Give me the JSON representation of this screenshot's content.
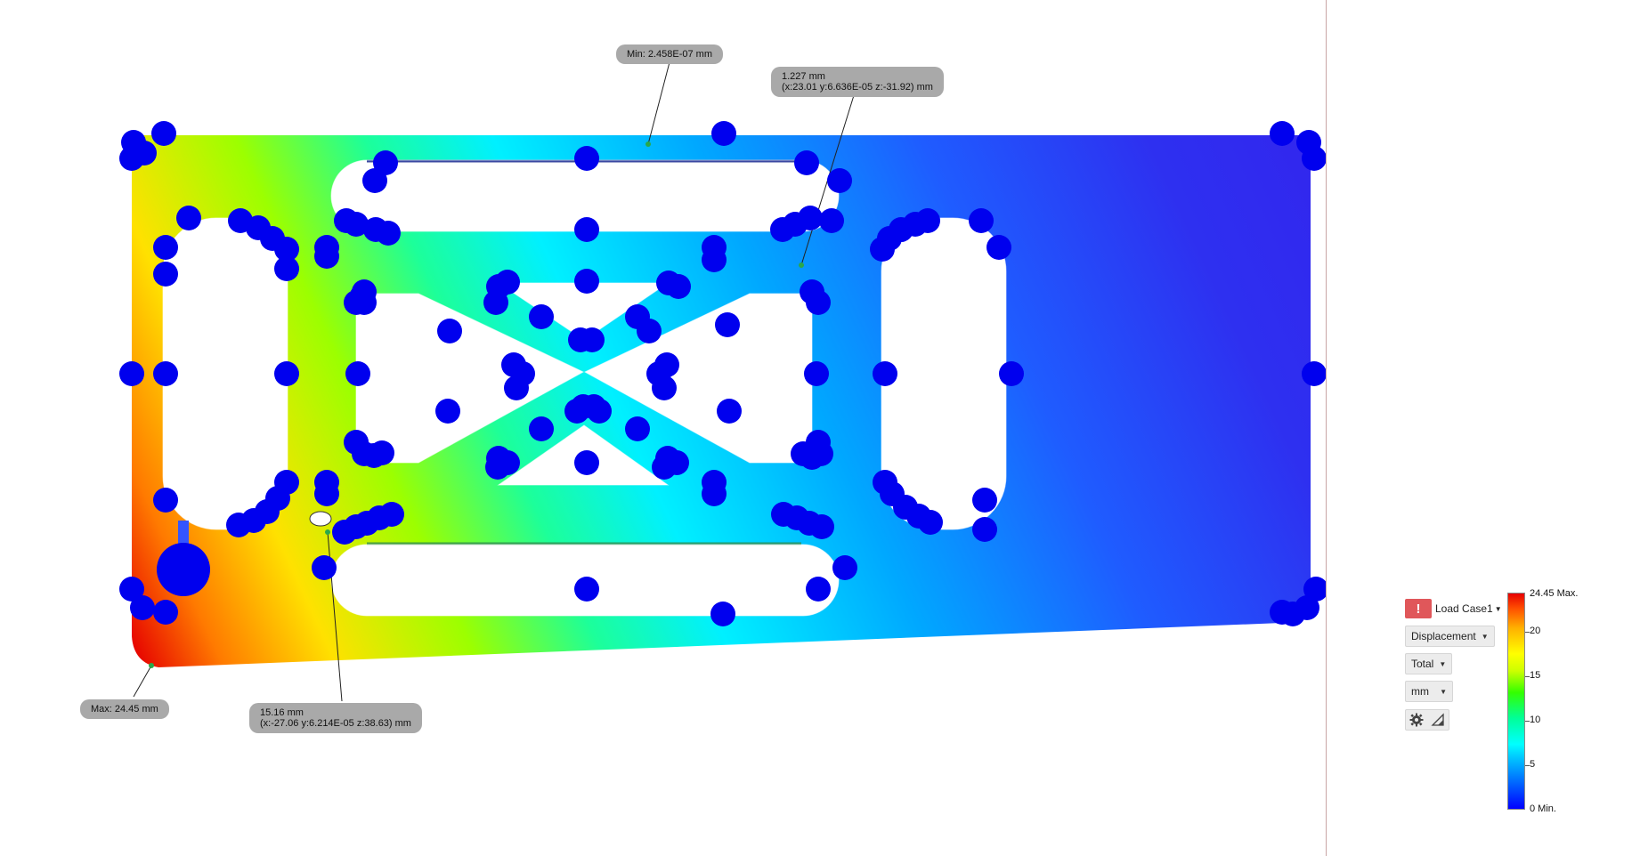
{
  "callouts": {
    "min": {
      "line1": "Min: 2.458E-07 mm"
    },
    "probe1": {
      "line1": "1.227 mm",
      "line2": "(x:23.01 y:6.636E-05 z:-31.92) mm"
    },
    "max": {
      "line1": "Max: 24.45 mm"
    },
    "probe2": {
      "line1": "15.16 mm",
      "line2": "(x:-27.06 y:6.214E-05 z:38.63) mm"
    }
  },
  "legend": {
    "warning_icon": "exclamation-icon",
    "load_case": "Load Case1",
    "result_type": "Displacement",
    "component": "Total",
    "units": "mm",
    "settings_icon": "gear-icon",
    "probe_icon": "triangle-ruler-icon",
    "scale": {
      "max_label": "24.45 Max.",
      "min_label": "0 Min.",
      "ticks": [
        "20",
        "15",
        "10",
        "5"
      ],
      "max_value": 24.45,
      "min_value": 0
    },
    "colors": {
      "min": "#0000ff",
      "max": "#e60000",
      "warning": "#e0575a",
      "constraint_markers": "#0000ff"
    }
  }
}
